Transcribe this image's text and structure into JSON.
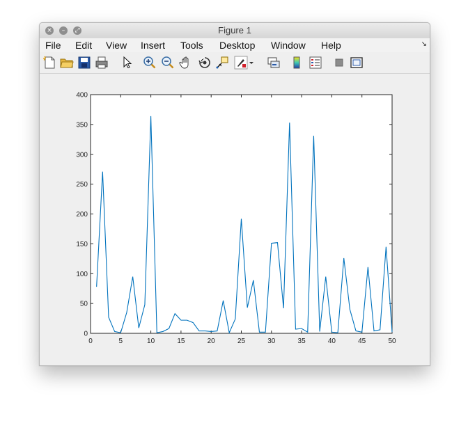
{
  "window": {
    "title": "Figure 1",
    "traffic_lights": [
      "close-icon",
      "minimize-icon",
      "zoom-icon"
    ]
  },
  "menubar": {
    "items": [
      "File",
      "Edit",
      "View",
      "Insert",
      "Tools",
      "Desktop",
      "Window",
      "Help"
    ],
    "overflow_icon": "dock-arrow-icon"
  },
  "toolbar": {
    "buttons": [
      "new-figure-icon",
      "open-file-icon",
      "save-icon",
      "print-icon",
      "pointer-icon",
      "zoom-in-icon",
      "zoom-out-icon",
      "pan-icon",
      "rotate-3d-icon",
      "data-cursor-icon",
      "brush-icon",
      "brush-dropdown-icon",
      "link-plot-icon",
      "colorbar-icon",
      "legend-icon",
      "hide-tools-icon",
      "show-tools-icon"
    ]
  },
  "chart_data": {
    "type": "line",
    "title": "",
    "xlabel": "",
    "ylabel": "",
    "xlim": [
      0,
      50
    ],
    "ylim": [
      0,
      400
    ],
    "xticks": [
      0,
      5,
      10,
      15,
      20,
      25,
      30,
      35,
      40,
      45,
      50
    ],
    "yticks": [
      0,
      50,
      100,
      150,
      200,
      250,
      300,
      350,
      400
    ],
    "grid": false,
    "series": [
      {
        "color": "#0072BD",
        "x": [
          1,
          2,
          3,
          4,
          5,
          6,
          7,
          8,
          9,
          10,
          11,
          12,
          13,
          14,
          15,
          16,
          17,
          18,
          19,
          20,
          21,
          22,
          23,
          24,
          25,
          26,
          27,
          28,
          29,
          30,
          31,
          32,
          33,
          34,
          35,
          36,
          37,
          38,
          39,
          40,
          41,
          42,
          43,
          44,
          45,
          46,
          47,
          48,
          49,
          50
        ],
        "y": [
          78,
          271,
          27,
          3,
          1,
          35,
          95,
          9,
          48,
          364,
          1,
          3,
          8,
          33,
          22,
          22,
          18,
          4,
          4,
          3,
          4,
          55,
          1,
          24,
          192,
          43,
          89,
          2,
          2,
          151,
          152,
          42,
          353,
          7,
          8,
          2,
          331,
          3,
          95,
          2,
          1,
          126,
          40,
          4,
          2,
          111,
          4,
          6,
          145,
          2
        ]
      }
    ]
  }
}
